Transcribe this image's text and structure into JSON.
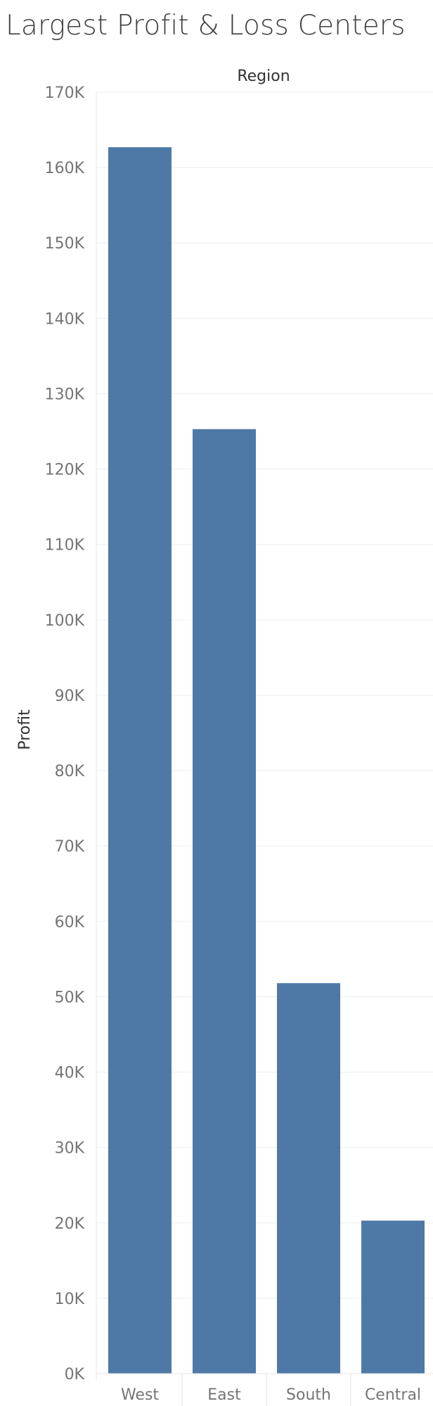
{
  "chart_data": {
    "type": "bar",
    "title": "Largest Profit & Loss Centers",
    "column_header": "Region",
    "ylabel": "Profit",
    "categories": [
      "West",
      "East",
      "South",
      "Central"
    ],
    "values": [
      162.7,
      125.3,
      51.8,
      20.3
    ],
    "value_unit": "K",
    "ylim": [
      0,
      170
    ],
    "y_ticks": [
      "0K",
      "10K",
      "20K",
      "30K",
      "40K",
      "50K",
      "60K",
      "70K",
      "80K",
      "90K",
      "100K",
      "110K",
      "120K",
      "130K",
      "140K",
      "150K",
      "160K",
      "170K"
    ],
    "grid": true,
    "legend": "none",
    "colors": {
      "bar": "#4e79a7",
      "grid": "#eeeeee",
      "axis": "#e6e6e6"
    }
  }
}
